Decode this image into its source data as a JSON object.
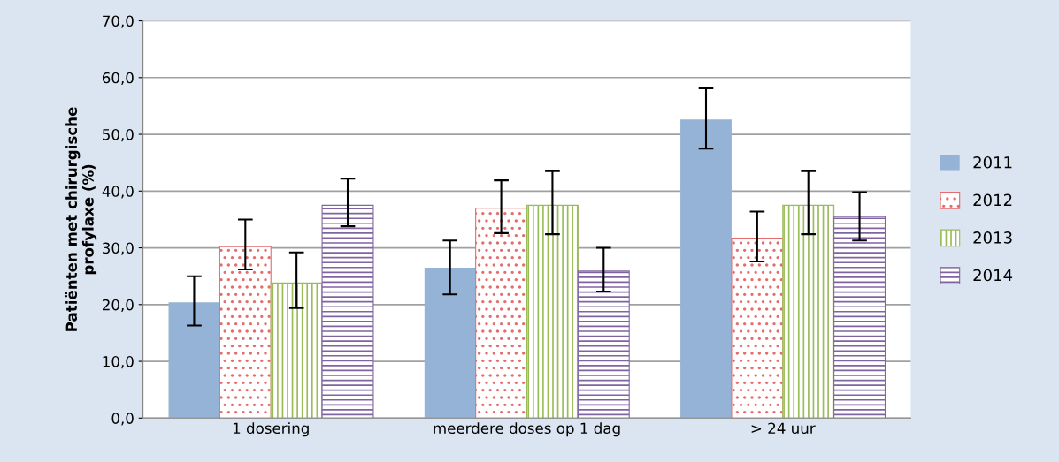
{
  "chart_data": {
    "type": "bar",
    "ylabel": "Patiënten met chirurgische\nprofylaxe (%)",
    "categories": [
      "1 dosering",
      "meerdere doses op 1 dag",
      "> 24 uur"
    ],
    "series": [
      {
        "name": "2011",
        "color": "#95b3d7",
        "values": [
          20.4,
          26.5,
          52.6
        ],
        "errors": [
          [
            16.3,
            25.0
          ],
          [
            21.8,
            31.3
          ],
          [
            47.5,
            58.1
          ]
        ]
      },
      {
        "name": "2012",
        "color": "#e46c6c",
        "values": [
          30.2,
          37.0,
          31.7
        ],
        "errors": [
          [
            26.2,
            35.0
          ],
          [
            32.6,
            41.9
          ],
          [
            27.6,
            36.4
          ]
        ]
      },
      {
        "name": "2013",
        "color": "#9bbb59",
        "values": [
          23.8,
          37.5,
          37.5
        ],
        "errors": [
          [
            19.4,
            29.2
          ],
          [
            32.4,
            43.5
          ],
          [
            32.4,
            43.5
          ]
        ]
      },
      {
        "name": "2014",
        "color": "#8064a2",
        "values": [
          37.5,
          25.9,
          35.5
        ],
        "errors": [
          [
            33.8,
            42.2
          ],
          [
            22.3,
            30.0
          ],
          [
            31.3,
            39.8
          ]
        ]
      }
    ],
    "ylim": [
      0,
      70
    ],
    "yticks": [
      {
        "value": 0,
        "label": "0,0"
      },
      {
        "value": 10,
        "label": "10,0"
      },
      {
        "value": 20,
        "label": "20,0"
      },
      {
        "value": 30,
        "label": "30,0"
      },
      {
        "value": 40,
        "label": "40,0"
      },
      {
        "value": 50,
        "label": "50,0"
      },
      {
        "value": 60,
        "label": "60,0"
      },
      {
        "value": 70,
        "label": "70,0"
      }
    ],
    "grid": "y",
    "legend": "right"
  }
}
